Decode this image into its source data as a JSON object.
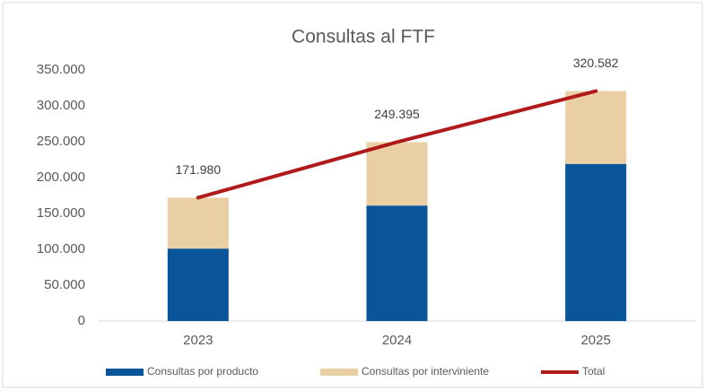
{
  "chart_data": {
    "type": "bar",
    "stacked": true,
    "title": "Consultas al FTF",
    "categories": [
      "2023",
      "2024",
      "2025"
    ],
    "series": [
      {
        "name": "Consultas por producto",
        "color": "#0a5599",
        "values": [
          101000,
          161000,
          219000
        ]
      },
      {
        "name": "Consultas por interviniente",
        "color": "#e9cfa3",
        "values": [
          70980,
          88395,
          101582
        ]
      },
      {
        "name": "Total",
        "type": "line",
        "color": "#b01a1a",
        "values": [
          171980,
          249395,
          320582
        ],
        "value_labels": [
          "171.980",
          "249.395",
          "320.582"
        ]
      }
    ],
    "ylim": [
      0,
      350000
    ],
    "yticks": [
      0,
      {
        "value": 50000,
        "label": "50.000"
      },
      {
        "value": 100000,
        "label": "100.000"
      },
      {
        "value": 150000,
        "label": "150.000"
      },
      {
        "value": 200000,
        "label": "200.000"
      },
      {
        "value": 250000,
        "label": "250.000"
      },
      {
        "value": 300000,
        "label": "300.000"
      },
      {
        "value": 350000,
        "label": "350.000"
      }
    ],
    "grid": false,
    "legend": "bottom"
  }
}
